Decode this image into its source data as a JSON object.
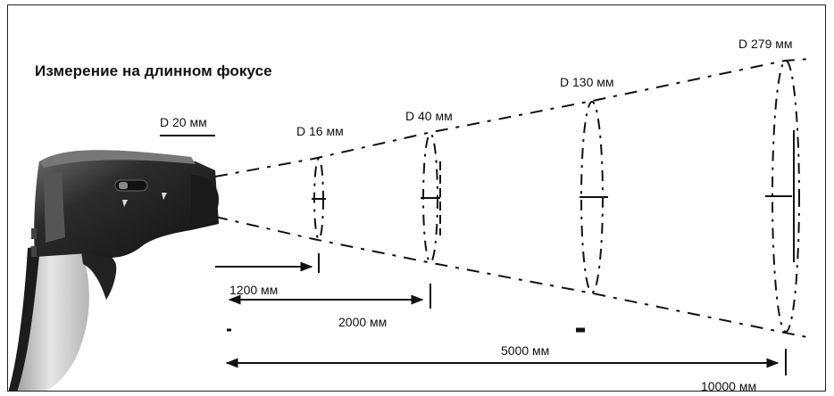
{
  "title": "Измерение на длинном фокусе",
  "spot_labels": {
    "d20": "D 20 мм",
    "d16": "D 16 мм",
    "d40": "D 40 мм",
    "d130": "D 130 мм",
    "d279": "D 279 мм"
  },
  "distance_labels": {
    "l1200": "1200 мм",
    "l2000": "2000 мм",
    "l5000": "5000 мм",
    "l10000": "10000 мм"
  },
  "colors": {
    "ink": "#111111",
    "device_body": "#2a2a2a",
    "device_grip": "#cfcfcf"
  },
  "icons": [
    "infrared-thermometer-icon"
  ]
}
